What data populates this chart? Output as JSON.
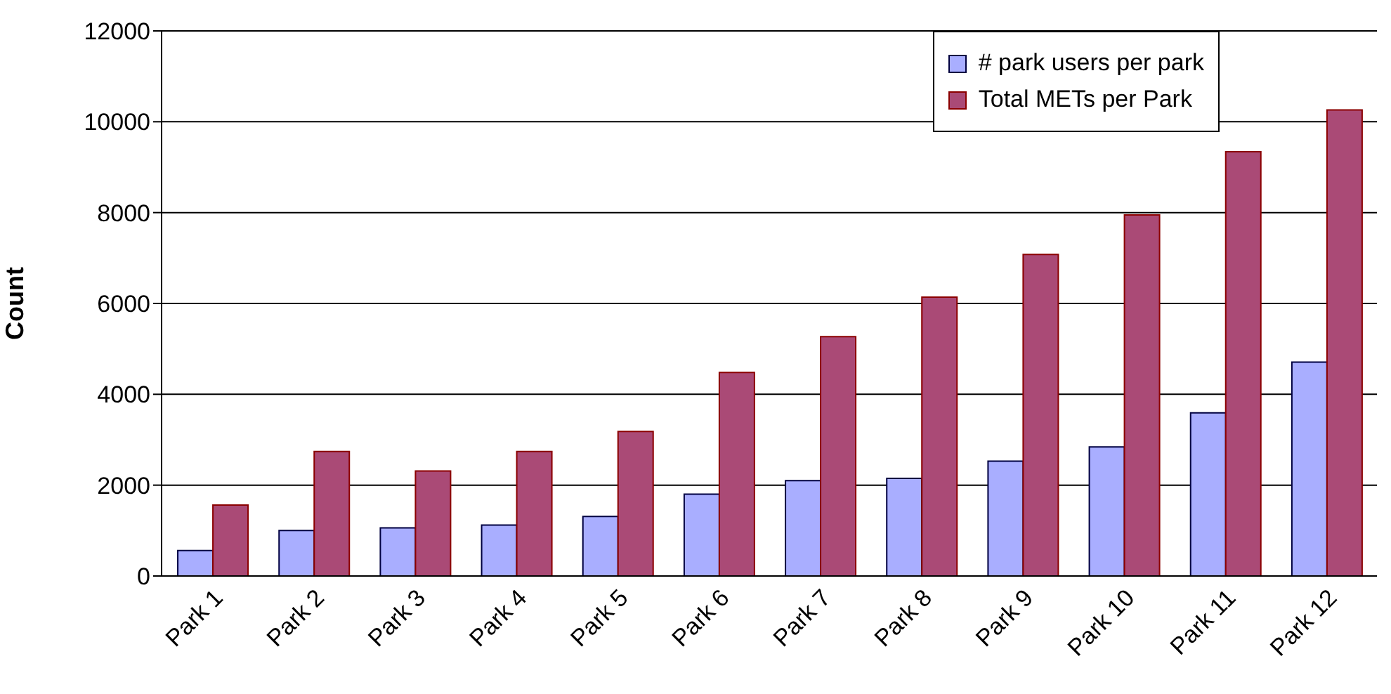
{
  "chart_data": {
    "type": "bar",
    "ylabel": "Count",
    "categories": [
      "Park 1",
      "Park 2",
      "Park 3",
      "Park 4",
      "Park 5",
      "Park 6",
      "Park 7",
      "Park 8",
      "Park 9",
      "Park 10",
      "Park 11",
      "Park 12"
    ],
    "series": [
      {
        "name": "# park users per park",
        "color": "#a9aeff",
        "values": [
          560,
          1000,
          1060,
          1120,
          1310,
          1800,
          2100,
          2150,
          2530,
          2840,
          3590,
          4710
        ]
      },
      {
        "name": "Total METs per Park",
        "color": "#aa4a76",
        "values": [
          1560,
          2740,
          2310,
          2740,
          3180,
          4480,
          5270,
          6140,
          7080,
          7950,
          9340,
          10260
        ]
      }
    ],
    "ylim": [
      0,
      12000
    ],
    "yticks": [
      0,
      2000,
      4000,
      6000,
      8000,
      10000,
      12000
    ],
    "grid": "y",
    "legend": "top right"
  }
}
